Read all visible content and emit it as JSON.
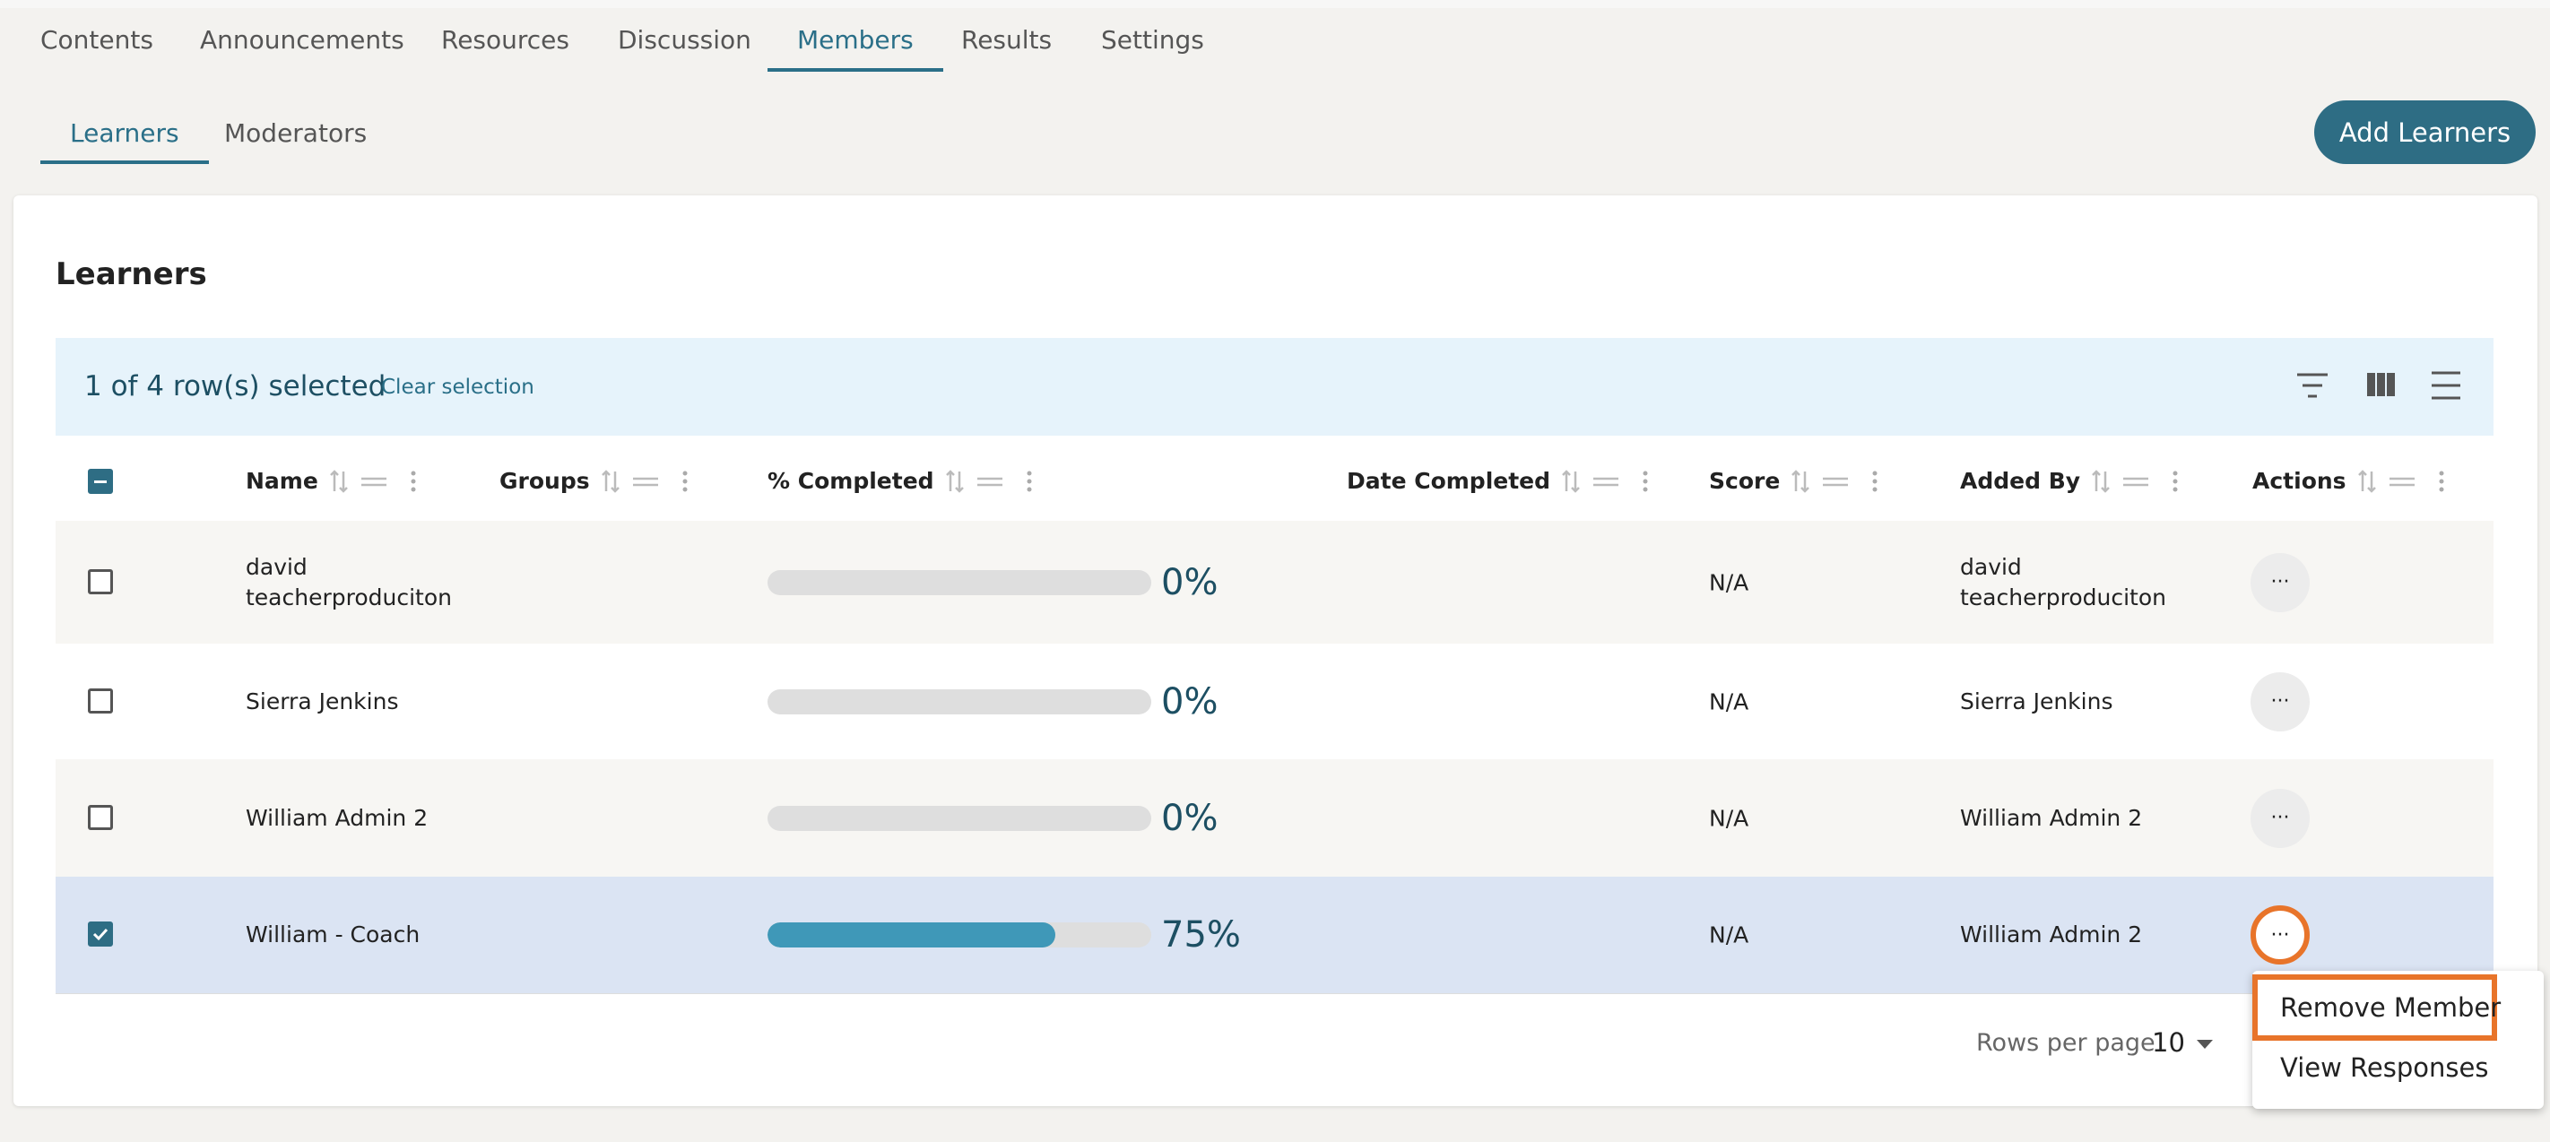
{
  "tabs": [
    "Contents",
    "Announcements",
    "Resources",
    "Discussion",
    "Members",
    "Results",
    "Settings"
  ],
  "active_tab": 4,
  "subtabs": [
    "Learners",
    "Moderators"
  ],
  "active_subtab": 0,
  "add_button": "Add Learners",
  "card": {
    "title": "Learners",
    "selection": {
      "text": "1 of 4 row(s) selected",
      "clear": "Clear selection"
    },
    "columns": [
      "Name",
      "Groups",
      "% Completed",
      "Date Completed",
      "Score",
      "Added By",
      "Actions"
    ],
    "rows": [
      {
        "name": "david teacherproduciton",
        "completed": 0,
        "completed_label": "0%",
        "score": "N/A",
        "added_by": "david teacherproduciton",
        "selected": false
      },
      {
        "name": "Sierra Jenkins",
        "completed": 0,
        "completed_label": "0%",
        "score": "N/A",
        "added_by": "Sierra Jenkins",
        "selected": false
      },
      {
        "name": "William Admin 2",
        "completed": 0,
        "completed_label": "0%",
        "score": "N/A",
        "added_by": "William Admin 2",
        "selected": false
      },
      {
        "name": "William - Coach",
        "completed": 75,
        "completed_label": "75%",
        "score": "N/A",
        "added_by": "William Admin 2",
        "selected": true
      }
    ],
    "pagination": {
      "label": "Rows per page",
      "value": "10"
    },
    "menu": [
      "Remove Member",
      "View Responses"
    ],
    "highlighted_menu_item": 0
  }
}
